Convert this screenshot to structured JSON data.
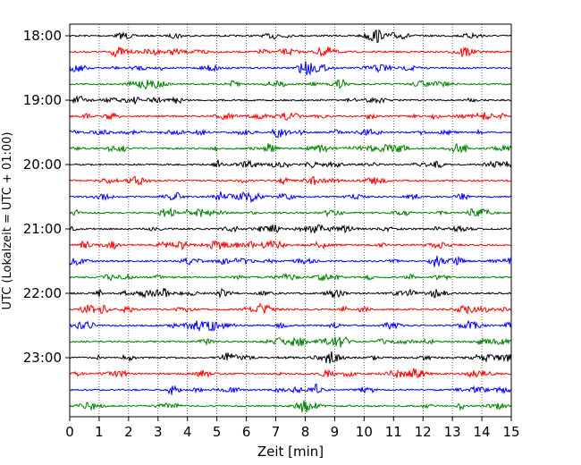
{
  "chart_data": {
    "type": "line",
    "xlabel": "Zeit  [min]",
    "ylabel": "UTC (Lokalzeit = UTC + 01:00)",
    "xlim": [
      0,
      15
    ],
    "x_ticks": [
      "0",
      "1",
      "2",
      "3",
      "4",
      "5",
      "6",
      "7",
      "8",
      "9",
      "10",
      "11",
      "12",
      "13",
      "14",
      "15"
    ],
    "y_tick_labels": [
      "18:00",
      "19:00",
      "20:00",
      "21:00",
      "22:00",
      "23:00"
    ],
    "vertical_grid": "dotted",
    "trace_interval_min": 15,
    "traces": [
      {
        "start": "18:00",
        "color": "#000000"
      },
      {
        "start": "18:15",
        "color": "#ff0000"
      },
      {
        "start": "18:30",
        "color": "#0000ff"
      },
      {
        "start": "18:45",
        "color": "#008000"
      },
      {
        "start": "19:00",
        "color": "#000000"
      },
      {
        "start": "19:15",
        "color": "#ff0000"
      },
      {
        "start": "19:30",
        "color": "#0000ff"
      },
      {
        "start": "19:45",
        "color": "#008000"
      },
      {
        "start": "20:00",
        "color": "#000000"
      },
      {
        "start": "20:15",
        "color": "#ff0000"
      },
      {
        "start": "20:30",
        "color": "#0000ff"
      },
      {
        "start": "20:45",
        "color": "#008000"
      },
      {
        "start": "21:00",
        "color": "#000000"
      },
      {
        "start": "21:15",
        "color": "#ff0000"
      },
      {
        "start": "21:30",
        "color": "#0000ff"
      },
      {
        "start": "21:45",
        "color": "#008000"
      },
      {
        "start": "22:00",
        "color": "#000000"
      },
      {
        "start": "22:15",
        "color": "#ff0000"
      },
      {
        "start": "22:30",
        "color": "#0000ff"
      },
      {
        "start": "22:45",
        "color": "#008000"
      },
      {
        "start": "23:00",
        "color": "#000000"
      },
      {
        "start": "23:15",
        "color": "#ff0000"
      },
      {
        "start": "23:30",
        "color": "#0000ff"
      },
      {
        "start": "23:45",
        "color": "#008000"
      }
    ]
  }
}
